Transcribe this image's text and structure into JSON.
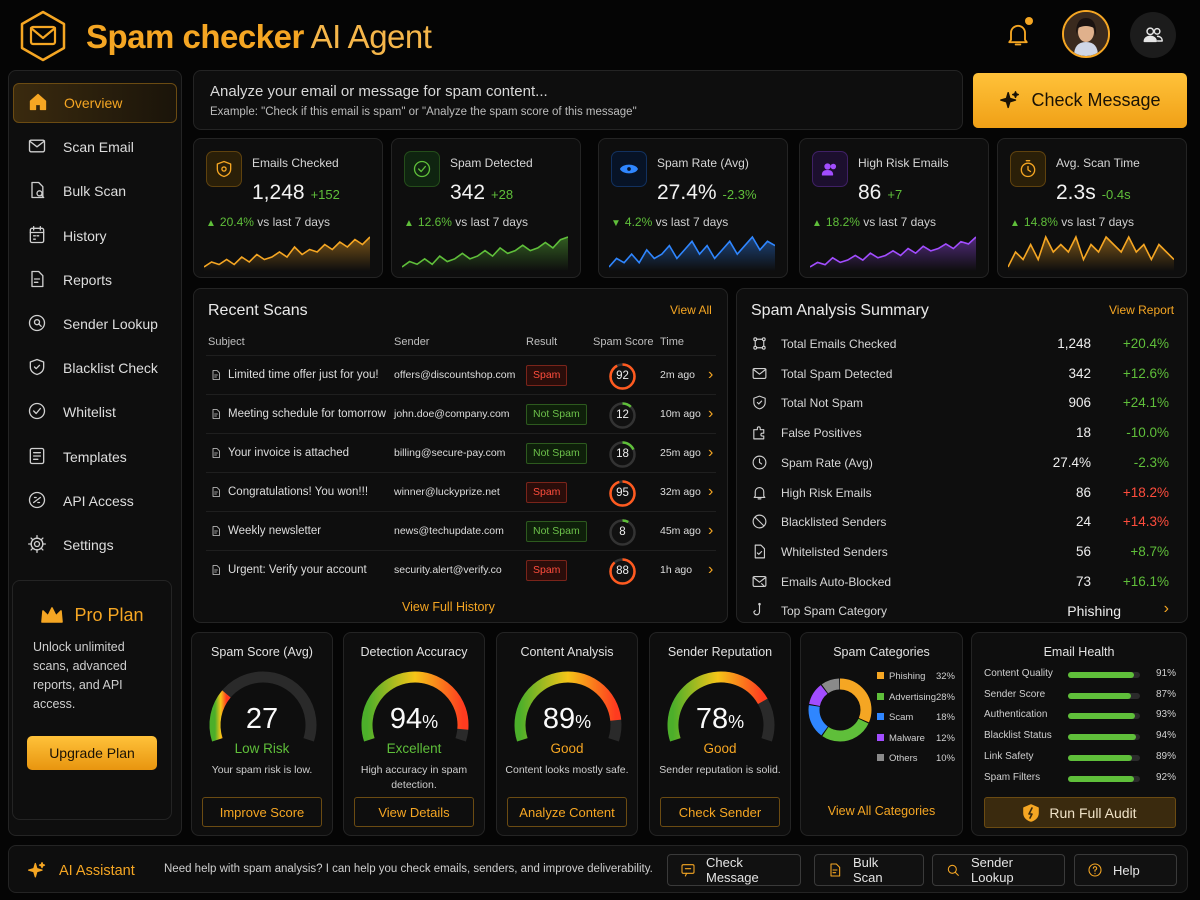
{
  "app": {
    "title_main": "Spam checker",
    "title_sub": " AI Agent"
  },
  "sidebar": {
    "items": [
      {
        "label": "Overview",
        "icon": "home-icon"
      },
      {
        "label": "Scan Email",
        "icon": "mail-icon"
      },
      {
        "label": "Bulk Scan",
        "icon": "bulk-scan-icon"
      },
      {
        "label": "History",
        "icon": "history-icon"
      },
      {
        "label": "Reports",
        "icon": "reports-icon"
      },
      {
        "label": "Sender Lookup",
        "icon": "sender-lookup-icon"
      },
      {
        "label": "Blacklist Check",
        "icon": "shield-icon"
      },
      {
        "label": "Whitelist",
        "icon": "check-circle-icon"
      },
      {
        "label": "Templates",
        "icon": "templates-icon"
      },
      {
        "label": "API Access",
        "icon": "api-icon"
      },
      {
        "label": "Settings",
        "icon": "gear-icon"
      }
    ]
  },
  "pro": {
    "title": "Pro Plan",
    "desc": "Unlock unlimited scans, advanced reports, and API access.",
    "button": "Upgrade Plan"
  },
  "search": {
    "placeholder": "Analyze your email or message for spam content...",
    "example": "Example: \"Check if this email is spam\" or \"Analyze the spam score of this message\"",
    "button": "Check Message"
  },
  "stats": [
    {
      "label": "Emails Checked",
      "value": "1,248",
      "change": "+152",
      "trend": "20.4%",
      "trend_text": " vs last 7 days",
      "trend_dir": "up",
      "color": "#f5a623",
      "spark": [
        4,
        6,
        5,
        7,
        5,
        8,
        6,
        9,
        7,
        8,
        10,
        8,
        12,
        9,
        11,
        10,
        13,
        11,
        14,
        12,
        15,
        13,
        16
      ]
    },
    {
      "label": "Spam Detected",
      "value": "342",
      "change": "+28",
      "trend": "12.6%",
      "trend_text": " vs last 7 days",
      "trend_dir": "up",
      "color": "#5fbf3a",
      "spark": [
        5,
        7,
        6,
        8,
        6,
        9,
        7,
        8,
        10,
        8,
        9,
        11,
        9,
        12,
        10,
        11,
        13,
        11,
        12,
        14,
        12,
        15,
        16
      ]
    },
    {
      "label": "Spam Rate (Avg)",
      "value": "27.4%",
      "change": "-2.3%",
      "trend": "4.2%",
      "trend_text": " vs last 7 days",
      "trend_dir": "down",
      "color": "#2f86ff",
      "spark": [
        6,
        8,
        7,
        9,
        7,
        10,
        8,
        9,
        11,
        8,
        10,
        12,
        9,
        11,
        8,
        10,
        12,
        9,
        11,
        13,
        10,
        12,
        11
      ]
    },
    {
      "label": "High Risk Emails",
      "value": "86",
      "change": "+7",
      "trend": "18.2%",
      "trend_text": " vs last 7 days",
      "trend_dir": "up",
      "color": "#a24dff",
      "spark": [
        4,
        6,
        5,
        8,
        6,
        7,
        9,
        7,
        10,
        8,
        9,
        11,
        9,
        12,
        10,
        13,
        11,
        12,
        14,
        12,
        15,
        14,
        17
      ]
    },
    {
      "label": "Avg. Scan Time",
      "value": "2.3s",
      "change": "-0.4s",
      "trend": "14.8%",
      "trend_text": " vs last 7 days",
      "trend_dir": "up",
      "color": "#f5a623",
      "spark": [
        8,
        10,
        9,
        11,
        9,
        12,
        10,
        11,
        10,
        12,
        9,
        11,
        10,
        12,
        11,
        10,
        12,
        10,
        11,
        9,
        11,
        10,
        9
      ]
    }
  ],
  "recent": {
    "title": "Recent Scans",
    "link": "View All",
    "headers": [
      "Subject",
      "Sender",
      "Result",
      "Spam Score",
      "Time"
    ],
    "footer": "View Full History",
    "rows": [
      {
        "subject": "Limited time offer just for you!",
        "sender": "offers@discountshop.com",
        "result": "Spam",
        "score": "92",
        "time": "2m ago"
      },
      {
        "subject": "Meeting schedule for tomorrow",
        "sender": "john.doe@company.com",
        "result": "Not Spam",
        "score": "12",
        "time": "10m ago"
      },
      {
        "subject": "Your invoice is attached",
        "sender": "billing@secure-pay.com",
        "result": "Not Spam",
        "score": "18",
        "time": "25m ago"
      },
      {
        "subject": "Congratulations! You won!!!",
        "sender": "winner@luckyprize.net",
        "result": "Spam",
        "score": "95",
        "time": "32m ago"
      },
      {
        "subject": "Weekly newsletter",
        "sender": "news@techupdate.com",
        "result": "Not Spam",
        "score": "8",
        "time": "45m ago"
      },
      {
        "subject": "Urgent: Verify your account",
        "sender": "security.alert@verify.co",
        "result": "Spam",
        "score": "88",
        "time": "1h ago"
      }
    ]
  },
  "summary": {
    "title": "Spam Analysis Summary",
    "link": "View Report",
    "rows": [
      {
        "label": "Total Emails Checked",
        "value": "1,248",
        "pct": "+20.4%",
        "good": true,
        "icon": "network-icon"
      },
      {
        "label": "Total Spam Detected",
        "value": "342",
        "pct": "+12.6%",
        "good": true,
        "icon": "mail-icon"
      },
      {
        "label": "Total Not Spam",
        "value": "906",
        "pct": "+24.1%",
        "good": true,
        "icon": "shield-check-icon"
      },
      {
        "label": "False Positives",
        "value": "18",
        "pct": "-10.0%",
        "good": true,
        "icon": "puzzle-icon"
      },
      {
        "label": "Spam Rate (Avg)",
        "value": "27.4%",
        "pct": "-2.3%",
        "good": true,
        "icon": "clock-icon"
      },
      {
        "label": "High Risk Emails",
        "value": "86",
        "pct": "+18.2%",
        "good": false,
        "icon": "bell-icon"
      },
      {
        "label": "Blacklisted Senders",
        "value": "24",
        "pct": "+14.3%",
        "good": false,
        "icon": "blocked-icon"
      },
      {
        "label": "Whitelisted Senders",
        "value": "56",
        "pct": "+8.7%",
        "good": true,
        "icon": "doc-check-icon"
      },
      {
        "label": "Emails Auto-Blocked",
        "value": "73",
        "pct": "+16.1%",
        "good": true,
        "icon": "mail-block-icon"
      },
      {
        "label": "Top Spam Category",
        "value": "Phishing",
        "pct": "",
        "good": true,
        "icon": "hook-icon"
      }
    ]
  },
  "gauges": [
    {
      "title": "Spam Score (Avg)",
      "value": "27",
      "suffix": "",
      "level": 0.27,
      "status": "Low Risk",
      "status_color": "#5fbf3a",
      "desc": "Your spam risk is low.",
      "button": "Improve Score"
    },
    {
      "title": "Detection Accuracy",
      "value": "94",
      "suffix": "%",
      "level": 0.94,
      "status": "Excellent",
      "status_color": "#5fbf3a",
      "desc": "High accuracy in spam detection.",
      "button": "View Details"
    },
    {
      "title": "Content Analysis",
      "value": "89",
      "suffix": "%",
      "level": 0.89,
      "status": "Good",
      "status_color": "#f5a623",
      "desc": "Content looks mostly safe.",
      "button": "Analyze Content"
    },
    {
      "title": "Sender Reputation",
      "value": "78",
      "suffix": "%",
      "level": 0.78,
      "status": "Good",
      "status_color": "#f5a623",
      "desc": "Sender reputation is solid.",
      "button": "Check Sender"
    }
  ],
  "categories": {
    "title": "Spam Categories",
    "link": "View All Categories",
    "items": [
      {
        "name": "Phishing",
        "pct": "32%",
        "value": 32,
        "color": "#f5a623"
      },
      {
        "name": "Advertising",
        "pct": "28%",
        "value": 28,
        "color": "#5fbf3a"
      },
      {
        "name": "Scam",
        "pct": "18%",
        "value": 18,
        "color": "#2f86ff"
      },
      {
        "name": "Malware",
        "pct": "12%",
        "value": 12,
        "color": "#a24dff"
      },
      {
        "name": "Others",
        "pct": "10%",
        "value": 10,
        "color": "#8a8a8a"
      }
    ]
  },
  "health": {
    "title": "Email Health",
    "button": "Run Full Audit",
    "items": [
      {
        "label": "Content Quality",
        "pct": "91%",
        "value": 0.91
      },
      {
        "label": "Sender Score",
        "pct": "87%",
        "value": 0.87
      },
      {
        "label": "Authentication",
        "pct": "93%",
        "value": 0.93
      },
      {
        "label": "Blacklist Status",
        "pct": "94%",
        "value": 0.94
      },
      {
        "label": "Link Safety",
        "pct": "89%",
        "value": 0.89
      },
      {
        "label": "Spam Filters",
        "pct": "92%",
        "value": 0.92
      }
    ]
  },
  "assistant": {
    "title": "AI Assistant",
    "message": "Need help with spam analysis? I can help you check emails, senders, and improve deliverability.",
    "buttons": [
      {
        "label": "Check Message"
      },
      {
        "label": "Bulk Scan"
      },
      {
        "label": "Sender Lookup"
      },
      {
        "label": "Help"
      }
    ]
  }
}
